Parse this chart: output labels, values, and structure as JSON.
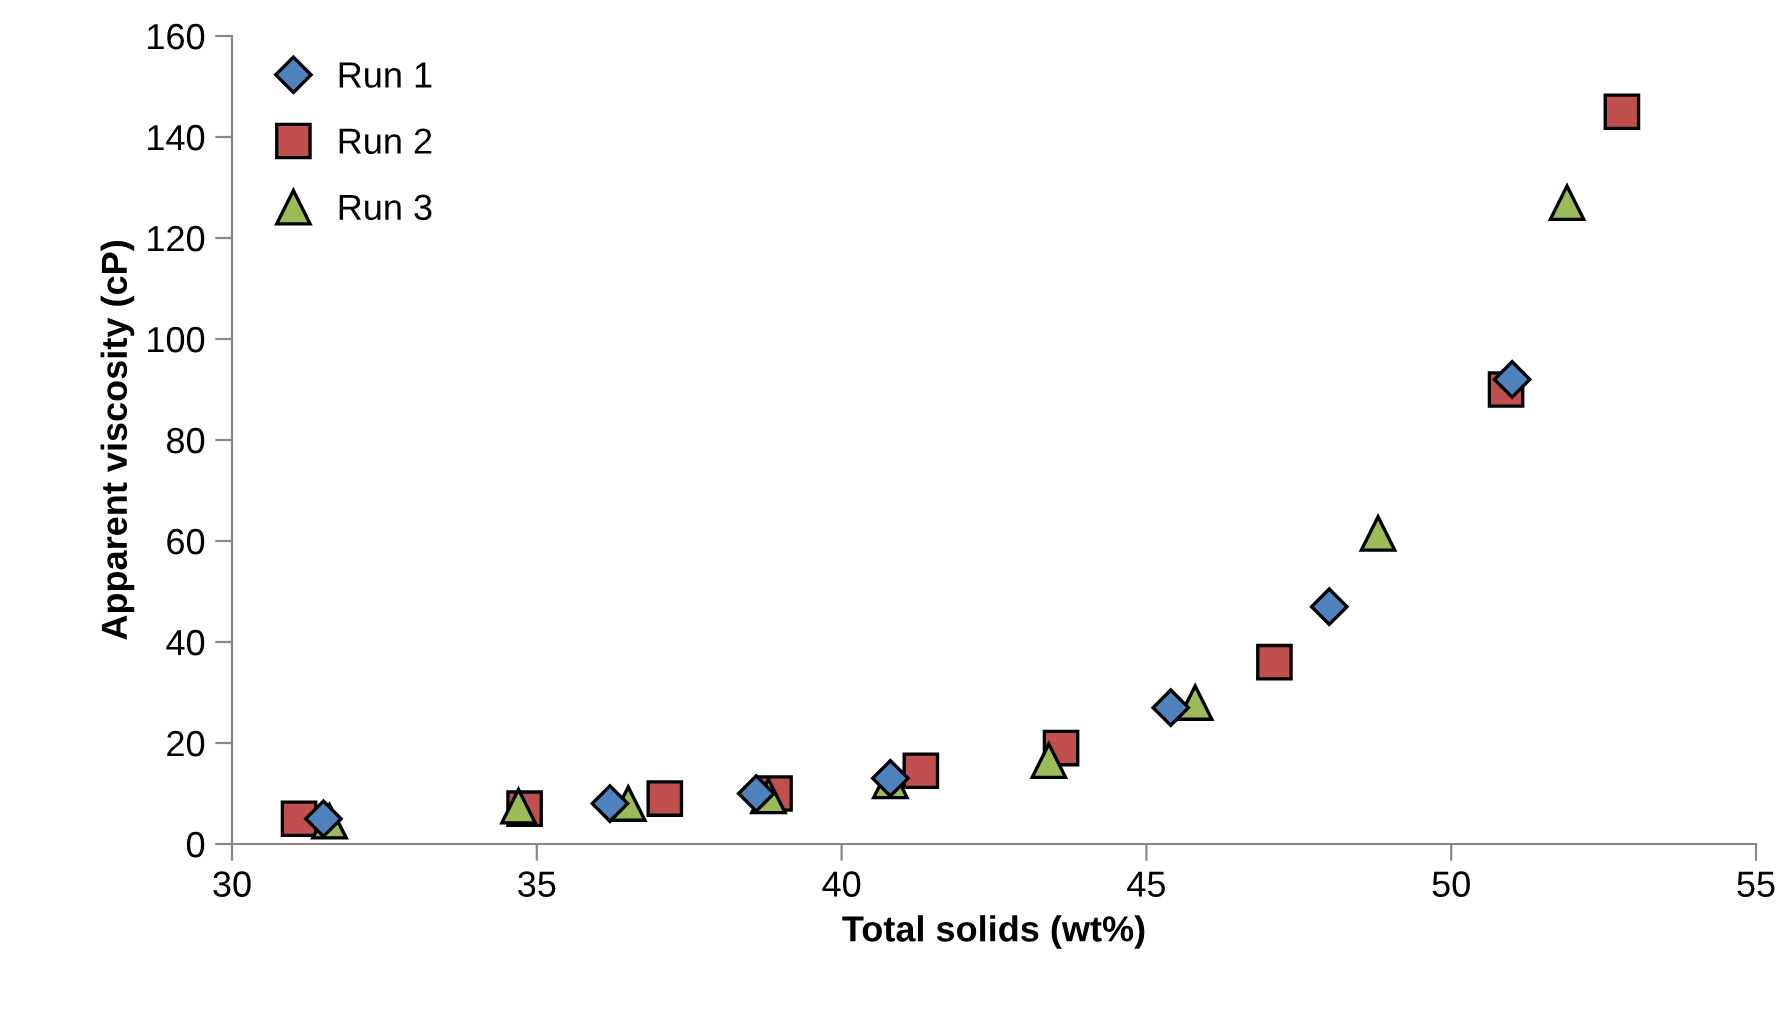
{
  "chart_data": {
    "type": "scatter",
    "xlabel": "Total solids (wt%)",
    "ylabel": "Apparent viscosity (cP)",
    "xlim": [
      30,
      55
    ],
    "xticks": [
      30,
      35,
      40,
      45,
      50,
      55
    ],
    "ylim": [
      0,
      160
    ],
    "yticks": [
      0,
      20,
      40,
      60,
      80,
      100,
      120,
      140,
      160
    ],
    "grid": false,
    "legend": "top left",
    "series": [
      {
        "name": "Run 1",
        "color": "#4f81bd",
        "marker": "diamond",
        "x": [
          31.5,
          36.2,
          38.6,
          40.8,
          45.4,
          48.0,
          51.0
        ],
        "values": [
          5,
          8,
          10,
          13,
          27,
          47,
          92
        ]
      },
      {
        "name": "Run 2",
        "color": "#c0504d",
        "marker": "square",
        "x": [
          31.1,
          34.8,
          37.1,
          38.9,
          41.3,
          43.6,
          47.1,
          50.9,
          52.8
        ],
        "values": [
          5,
          7,
          9,
          10,
          14.5,
          19,
          36,
          90,
          145
        ]
      },
      {
        "name": "Run 3",
        "color": "#9bbb59",
        "marker": "triangle",
        "x": [
          31.6,
          34.7,
          36.5,
          38.8,
          40.8,
          43.4,
          45.8,
          48.8,
          51.9
        ],
        "values": [
          4.5,
          7.5,
          8,
          9.5,
          12.5,
          16.5,
          28,
          61.5,
          127
        ]
      }
    ]
  }
}
